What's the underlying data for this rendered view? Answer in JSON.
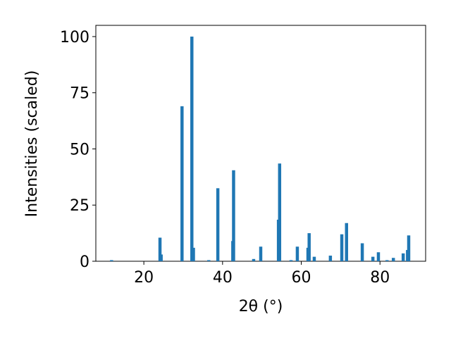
{
  "chart_data": {
    "type": "bar",
    "x": [
      11.8,
      24.1,
      24.4,
      29.7,
      32.2,
      32.6,
      36.5,
      38.8,
      42.6,
      42.8,
      47.9,
      49.7,
      54.2,
      54.5,
      57.4,
      59.0,
      61.7,
      62.0,
      63.3,
      67.4,
      70.3,
      71.5,
      75.5,
      78.2,
      79.6,
      81.8,
      83.4,
      85.9,
      87.0,
      87.3
    ],
    "values": [
      0.5,
      10.5,
      3,
      69,
      100,
      6,
      0.5,
      32.5,
      9,
      40.5,
      1,
      6.5,
      18.5,
      43.5,
      0.5,
      6.5,
      6,
      12.5,
      2,
      2.5,
      12,
      17,
      8,
      2,
      4,
      0.5,
      1.5,
      3.5,
      5,
      11.5
    ],
    "color": "#1f77b4",
    "xlabel": "2θ (°)",
    "ylabel": "Intensities (scaled)",
    "xlim": [
      7.8,
      91.6
    ],
    "ylim": [
      0,
      105
    ],
    "xticks": [
      20,
      40,
      60,
      80
    ],
    "yticks": [
      0,
      25,
      50,
      75,
      100
    ]
  }
}
